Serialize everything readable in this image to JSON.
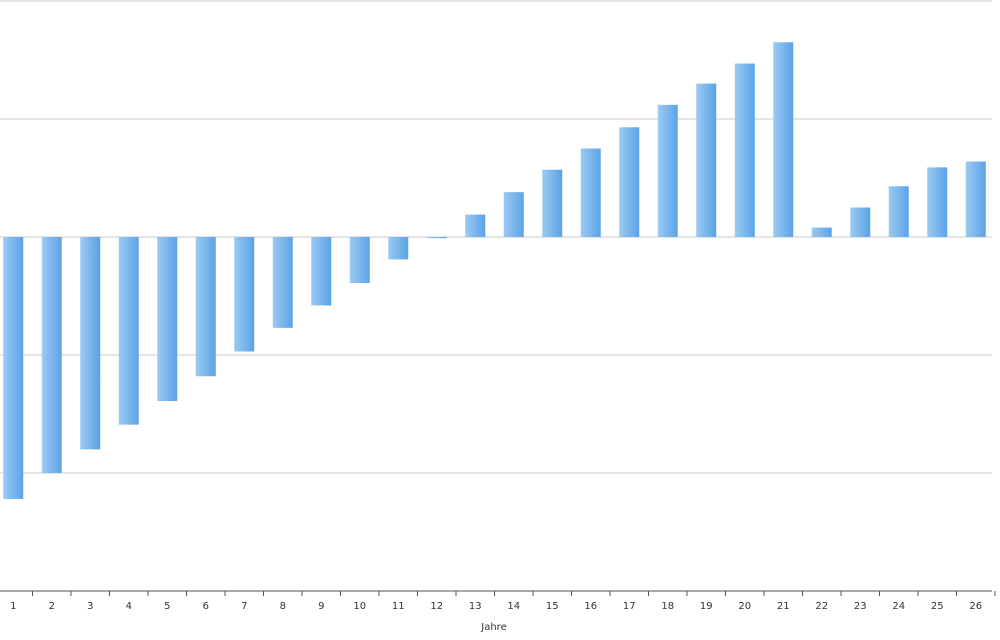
{
  "chart_data": {
    "type": "bar",
    "x_label": "Jahre",
    "categories": [
      "1",
      "2",
      "3",
      "4",
      "5",
      "6",
      "7",
      "8",
      "9",
      "10",
      "11",
      "12",
      "13",
      "14",
      "15",
      "16",
      "17",
      "18",
      "19",
      "20",
      "21",
      "22",
      "23",
      "24",
      "25",
      "26"
    ],
    "values": [
      -2.22,
      -2.0,
      -1.8,
      -1.59,
      -1.39,
      -1.18,
      -0.97,
      -0.77,
      -0.58,
      -0.39,
      -0.19,
      -0.01,
      0.19,
      0.38,
      0.57,
      0.75,
      0.93,
      1.12,
      1.3,
      1.47,
      1.65,
      0.08,
      0.25,
      0.43,
      0.59,
      0.64
    ],
    "color": "#6aaeea",
    "ylim": [
      -3,
      2
    ],
    "yticks": [
      -2,
      -1,
      0,
      1,
      2
    ],
    "grid": true
  }
}
